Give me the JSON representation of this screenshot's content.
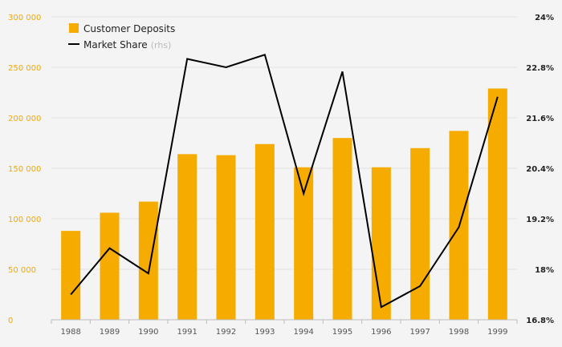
{
  "chart_data": {
    "type": "bar",
    "categories": [
      "1988",
      "1989",
      "1990",
      "1991",
      "1992",
      "1993",
      "1994",
      "1995",
      "1996",
      "1997",
      "1998",
      "1999"
    ],
    "series": [
      {
        "name": "Customer Deposits",
        "type": "bar",
        "axis": "left",
        "color": "#f5ab00",
        "values": [
          88000,
          106000,
          117000,
          164000,
          163000,
          174000,
          151000,
          180000,
          151000,
          170000,
          187000,
          229000
        ]
      },
      {
        "name": "Market Share",
        "name_suffix": "(rhs)",
        "type": "line",
        "axis": "right",
        "color": "#000000",
        "values": [
          17.4,
          18.5,
          17.9,
          23.0,
          22.8,
          23.1,
          19.8,
          22.7,
          17.1,
          17.6,
          19.0,
          22.1
        ]
      }
    ],
    "y_left": {
      "min": 0,
      "max": 300000,
      "ticks": [
        0,
        50000,
        100000,
        150000,
        200000,
        250000,
        300000
      ],
      "tick_labels": [
        "0",
        "50 000",
        "100 000",
        "150 000",
        "200 000",
        "250 000",
        "300 000"
      ],
      "color": "#f5a800"
    },
    "y_right": {
      "min": 16.8,
      "max": 24,
      "ticks": [
        16.8,
        18,
        19.2,
        20.4,
        21.6,
        22.8,
        24
      ],
      "tick_labels": [
        "16.8%",
        "18%",
        "19.2%",
        "20.4%",
        "21.6%",
        "22.8%",
        "24%"
      ]
    },
    "grid": true,
    "legend_position": "top-left"
  }
}
